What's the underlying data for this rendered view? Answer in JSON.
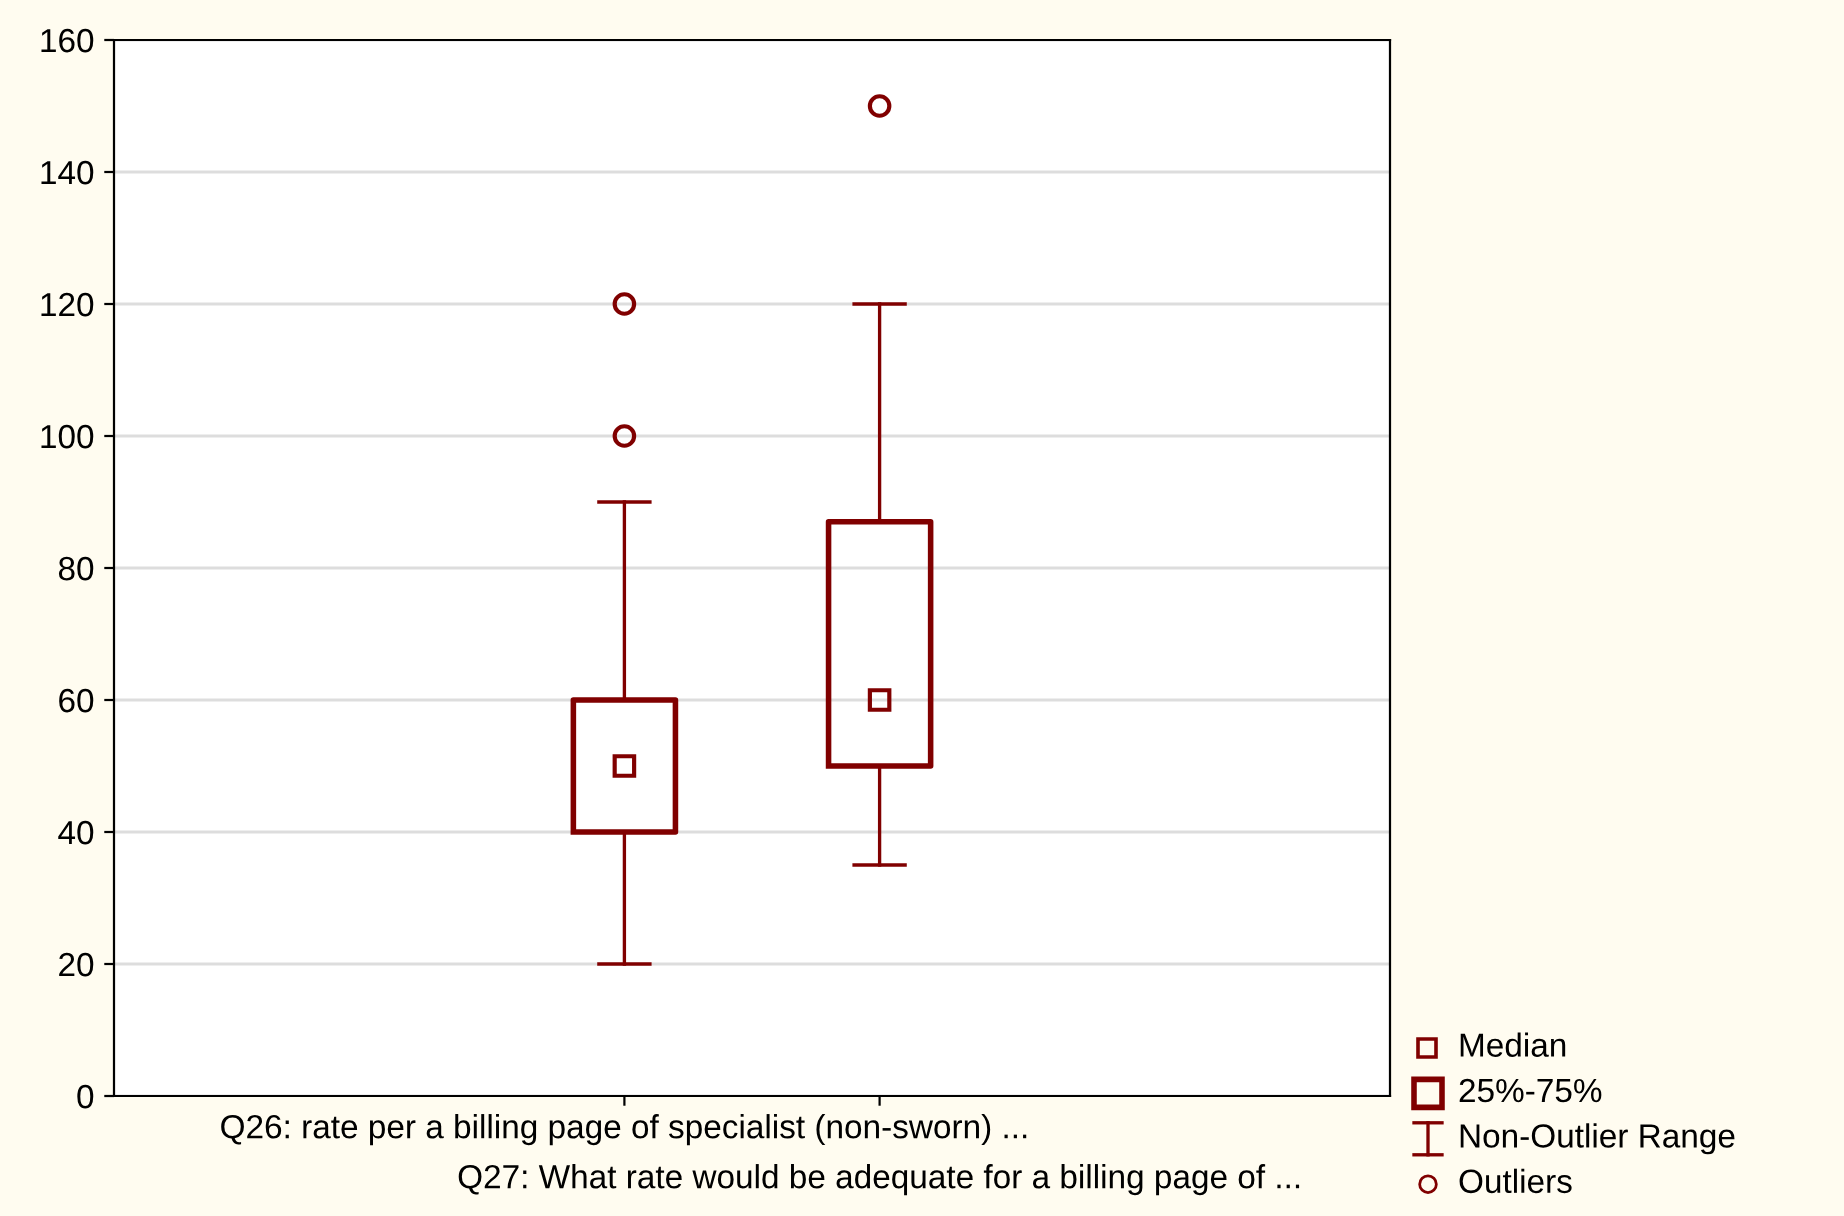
{
  "chart_data": {
    "type": "box",
    "categories": [
      "Q26: rate per a billing page of specialist (non-sworn) ...",
      "Q27: What rate would be adequate for a billing page of ..."
    ],
    "boxes": [
      {
        "low": 20,
        "q1": 40,
        "median": 50,
        "q3": 60,
        "high": 90,
        "outliers": [
          100,
          120
        ]
      },
      {
        "low": 35,
        "q1": 50,
        "median": 60,
        "q3": 87,
        "high": 120,
        "outliers": [
          150
        ]
      }
    ],
    "color": "#800000",
    "ylim": [
      0,
      160
    ],
    "yticks": [
      0,
      20,
      40,
      60,
      80,
      100,
      120,
      140,
      160
    ],
    "grid": "y",
    "marker": "square",
    "annotations": [
      "Median",
      "25%-75%",
      "Non-Outlier Range",
      "Outliers"
    ]
  }
}
